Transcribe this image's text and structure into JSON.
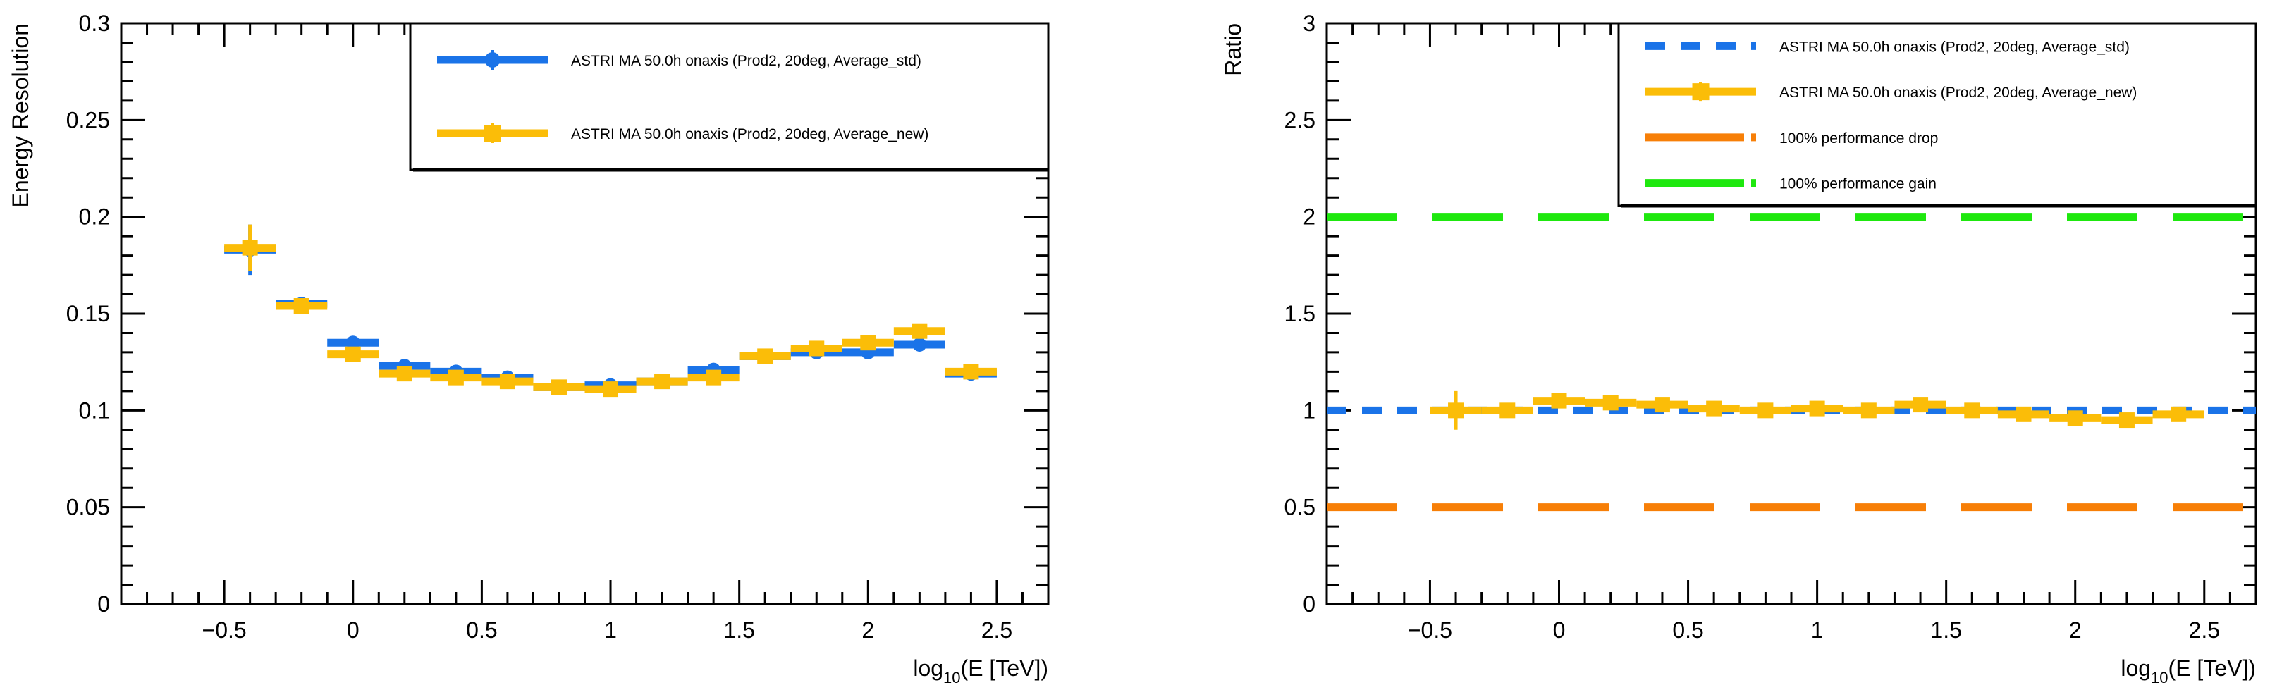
{
  "colors": {
    "std": "#1a73e8",
    "new": "#fbbd08",
    "drop": "#f77f07",
    "gain": "#1ee80e",
    "frame": "#000000"
  },
  "chart_data": [
    {
      "type": "scatter",
      "title": "",
      "xlabel": "log10(E [TeV])",
      "xlabel_base": "log",
      "xlabel_sub": "10",
      "xlabel_rest": "(E [TeV])",
      "ylabel": "Energy Resolution",
      "xlim": [
        -0.9,
        2.7
      ],
      "ylim": [
        0,
        0.3
      ],
      "grid": false,
      "legend_position": "top-right",
      "x_ticks": [
        -0.5,
        0,
        0.5,
        1,
        1.5,
        2,
        2.5
      ],
      "x_tick_labels": [
        "−0.5",
        "0",
        "0.5",
        "1",
        "1.5",
        "2",
        "2.5"
      ],
      "y_ticks": [
        0,
        0.05,
        0.1,
        0.15,
        0.2,
        0.25,
        0.3
      ],
      "y_tick_labels": [
        "0",
        "0.05",
        "0.1",
        "0.15",
        "0.2",
        "0.25",
        "0.3"
      ],
      "series": [
        {
          "name": "ASTRI MA 50.0h onaxis (Prod2, 20deg, Average_std)",
          "color": "#1a73e8",
          "marker": "circle",
          "x": [
            -0.4,
            -0.2,
            0.0,
            0.2,
            0.4,
            0.6,
            0.8,
            1.0,
            1.2,
            1.4,
            1.6,
            1.8,
            2.0,
            2.2,
            2.4
          ],
          "y": [
            0.183,
            0.155,
            0.135,
            0.123,
            0.12,
            0.117,
            0.112,
            0.113,
            0.115,
            0.121,
            0.128,
            0.13,
            0.13,
            0.134,
            0.119
          ],
          "x_err": 0.1,
          "y_err": [
            0.013,
            0.002,
            0.002,
            0.001,
            0.001,
            0.001,
            0.001,
            0.001,
            0.001,
            0.001,
            0.001,
            0.001,
            0.001,
            0.002,
            0.002
          ]
        },
        {
          "name": "ASTRI MA 50.0h onaxis (Prod2, 20deg, Average_new)",
          "color": "#fbbd08",
          "marker": "square",
          "x": [
            -0.4,
            -0.2,
            0.0,
            0.2,
            0.4,
            0.6,
            0.8,
            1.0,
            1.2,
            1.4,
            1.6,
            1.8,
            2.0,
            2.2,
            2.4
          ],
          "y": [
            0.184,
            0.154,
            0.129,
            0.119,
            0.117,
            0.115,
            0.112,
            0.111,
            0.115,
            0.117,
            0.128,
            0.132,
            0.135,
            0.141,
            0.12
          ],
          "x_err": 0.1,
          "y_err": [
            0.012,
            0.002,
            0.002,
            0.001,
            0.001,
            0.001,
            0.001,
            0.001,
            0.001,
            0.001,
            0.001,
            0.001,
            0.001,
            0.002,
            0.002
          ]
        }
      ]
    },
    {
      "type": "scatter",
      "title": "",
      "xlabel": "log10(E [TeV])",
      "xlabel_base": "log",
      "xlabel_sub": "10",
      "xlabel_rest": "(E [TeV])",
      "ylabel": "Ratio",
      "xlim": [
        -0.9,
        2.7
      ],
      "ylim": [
        0,
        3
      ],
      "grid": false,
      "legend_position": "top-right",
      "x_ticks": [
        -0.5,
        0,
        0.5,
        1,
        1.5,
        2,
        2.5
      ],
      "x_tick_labels": [
        "−0.5",
        "0",
        "0.5",
        "1",
        "1.5",
        "2",
        "2.5"
      ],
      "y_ticks": [
        0,
        0.5,
        1,
        1.5,
        2,
        2.5,
        3
      ],
      "y_tick_labels": [
        "0",
        "0.5",
        "1",
        "1.5",
        "2",
        "2.5",
        "3"
      ],
      "reference_lines": [
        {
          "name": "ASTRI MA 50.0h onaxis (Prod2, 20deg, Average_std)",
          "y": 1.0,
          "color": "#1a73e8"
        },
        {
          "name": "100% performance drop",
          "y": 0.5,
          "color": "#f77f07"
        },
        {
          "name": "100% performance gain",
          "y": 2.0,
          "color": "#1ee80e"
        }
      ],
      "series": [
        {
          "name": "ASTRI MA 50.0h onaxis (Prod2, 20deg, Average_new)",
          "color": "#fbbd08",
          "marker": "square",
          "x": [
            -0.4,
            -0.2,
            0.0,
            0.2,
            0.4,
            0.6,
            0.8,
            1.0,
            1.2,
            1.4,
            1.6,
            1.8,
            2.0,
            2.2,
            2.4
          ],
          "y": [
            1.0,
            1.0,
            1.05,
            1.04,
            1.03,
            1.01,
            1.0,
            1.01,
            1.0,
            1.03,
            1.0,
            0.98,
            0.96,
            0.95,
            0.98
          ],
          "x_err": 0.1,
          "y_err": [
            0.1,
            0.02,
            0.02,
            0.02,
            0.02,
            0.02,
            0.02,
            0.02,
            0.02,
            0.02,
            0.02,
            0.02,
            0.02,
            0.02,
            0.03
          ]
        }
      ],
      "legend_order": [
        "ASTRI MA 50.0h onaxis (Prod2, 20deg, Average_std)",
        "ASTRI MA 50.0h onaxis (Prod2, 20deg, Average_new)",
        "100% performance drop",
        "100% performance gain"
      ]
    }
  ]
}
